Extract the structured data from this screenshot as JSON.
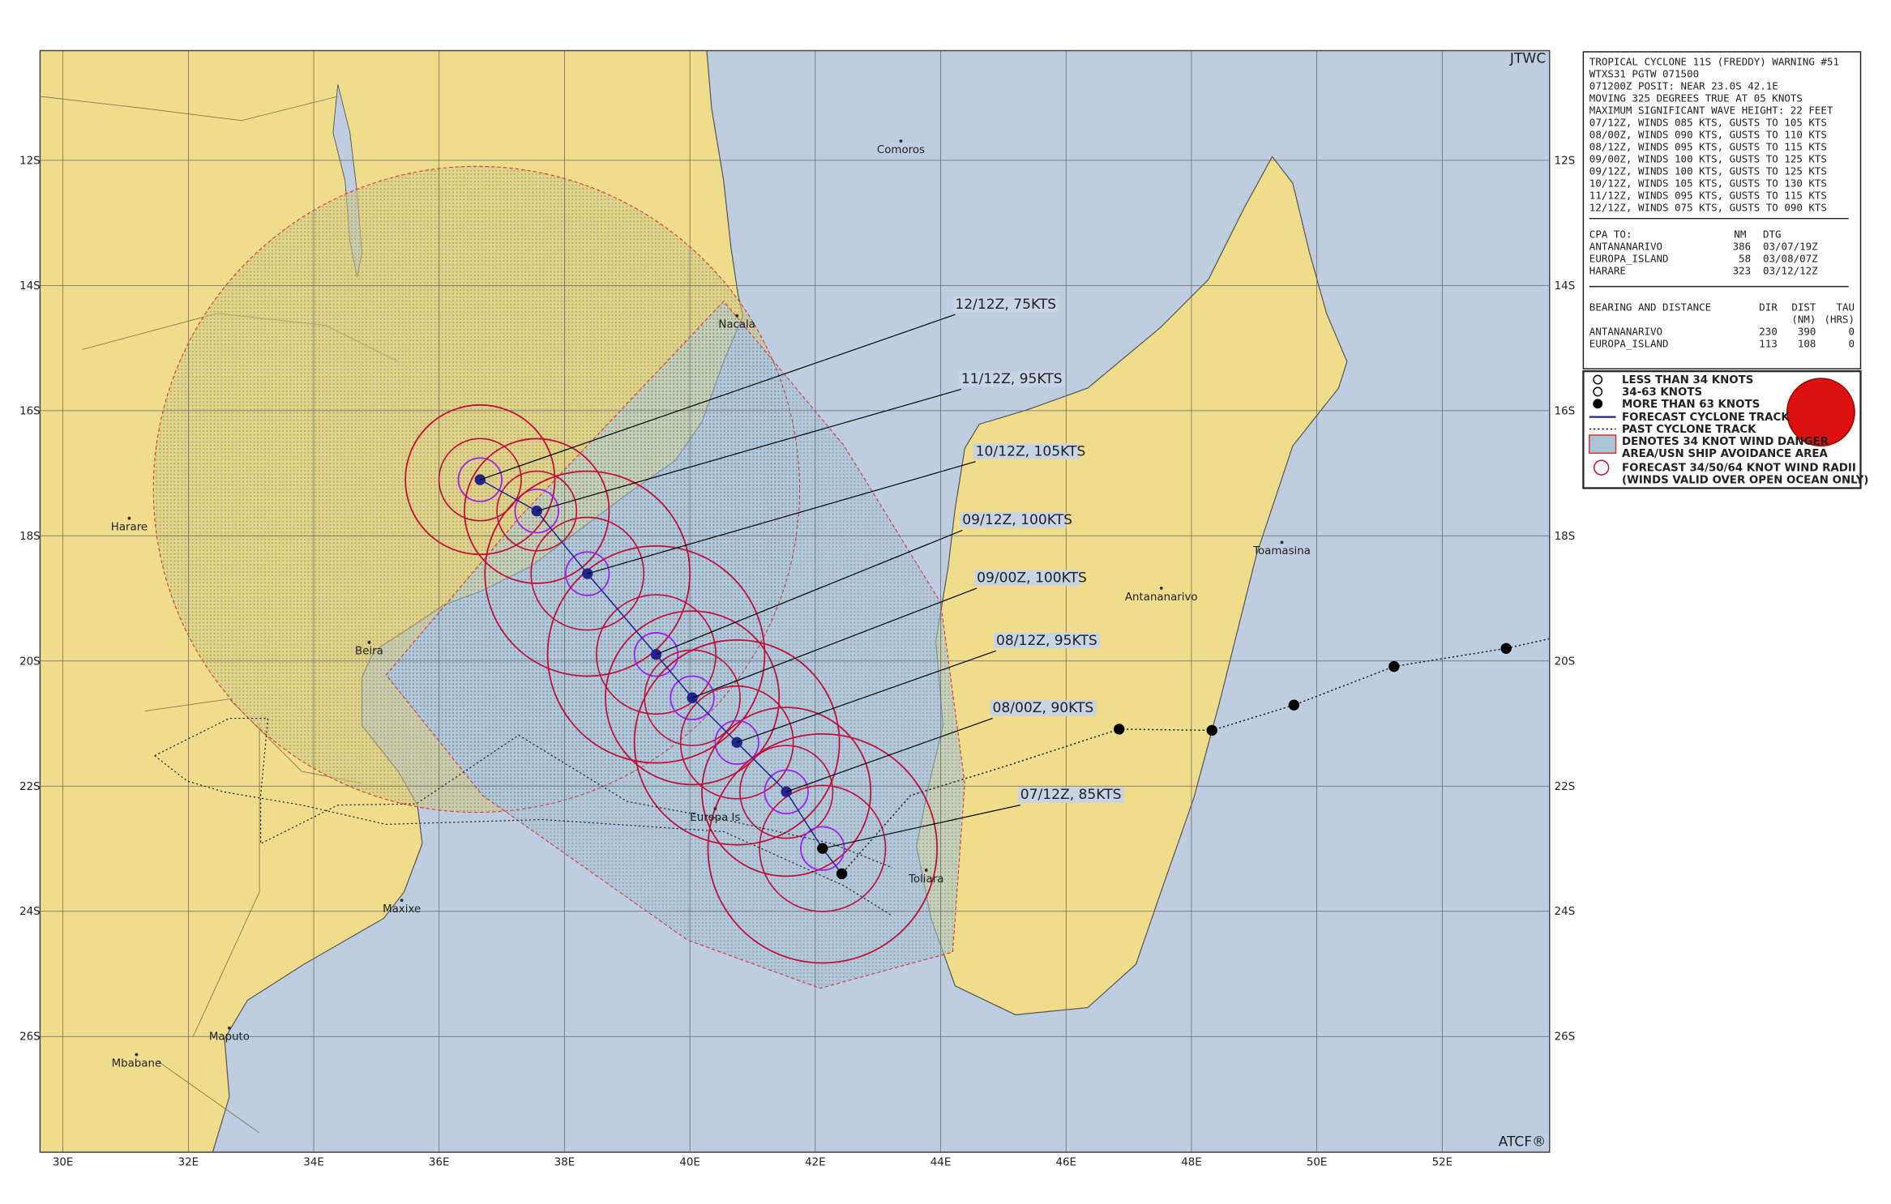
{
  "header": {
    "agency": "JTWC",
    "footer": "ATCF®"
  },
  "map": {
    "lat_labels": [
      "12S",
      "14S",
      "16S",
      "18S",
      "20S",
      "22S",
      "24S",
      "26S"
    ],
    "lon_labels": [
      "30E",
      "32E",
      "34E",
      "36E",
      "38E",
      "40E",
      "42E",
      "44E",
      "46E",
      "48E",
      "50E",
      "52E"
    ],
    "places": [
      "Comoros",
      "Nacala",
      "Harare",
      "Beira",
      "Europa Is",
      "Maxixe",
      "Maputo",
      "Mbabane",
      "Toliara",
      "Antananarivo",
      "Toamasina"
    ],
    "forecast_labels": [
      "12/12Z, 75KTS",
      "11/12Z, 95KTS",
      "10/12Z, 105KTS",
      "09/12Z, 100KTS",
      "09/00Z, 100KTS",
      "08/12Z, 95KTS",
      "08/00Z, 90KTS",
      "07/12Z, 85KTS"
    ]
  },
  "warning": {
    "lines": [
      "TROPICAL CYCLONE 11S (FREDDY) WARNING #51",
      "WTXS31 PGTW 071500",
      "071200Z POSIT: NEAR 23.0S 42.1E",
      "MOVING 325 DEGREES TRUE AT 05 KNOTS",
      "MAXIMUM SIGNIFICANT WAVE HEIGHT: 22 FEET",
      "07/12Z, WINDS 085 KTS, GUSTS TO 105 KTS",
      "08/00Z, WINDS 090 KTS, GUSTS TO 110 KTS",
      "08/12Z, WINDS 095 KTS, GUSTS TO 115 KTS",
      "09/00Z, WINDS 100 KTS, GUSTS TO 125 KTS",
      "09/12Z, WINDS 100 KTS, GUSTS TO 125 KTS",
      "10/12Z, WINDS 105 KTS, GUSTS TO 130 KTS",
      "11/12Z, WINDS 095 KTS, GUSTS TO 115 KTS",
      "12/12Z, WINDS 075 KTS, GUSTS TO 090 KTS"
    ],
    "cpa": {
      "header": [
        "CPA TO:",
        "NM",
        "DTG"
      ],
      "rows": [
        [
          "ANTANANARIVO",
          "386",
          "03/07/19Z"
        ],
        [
          "EUROPA_ISLAND",
          "58",
          "03/08/07Z"
        ],
        [
          "HARARE",
          "323",
          "03/12/12Z"
        ]
      ]
    },
    "bearing": {
      "header": [
        "BEARING AND DISTANCE",
        "DIR",
        "DIST",
        "TAU"
      ],
      "units": [
        "(NM)",
        "(HRS)"
      ],
      "rows": [
        [
          "ANTANANARIVO",
          "230",
          "390",
          "0"
        ],
        [
          "EUROPA_ISLAND",
          "113",
          "108",
          "0"
        ]
      ]
    }
  },
  "legend": {
    "items": [
      "LESS THAN 34 KNOTS",
      "34-63 KNOTS",
      "MORE THAN 63 KNOTS",
      "FORECAST CYCLONE TRACK",
      "PAST CYCLONE TRACK",
      "DENOTES 34 KNOT WIND DANGER",
      "AREA/USN SHIP AVOIDANCE AREA",
      "FORECAST 34/50/64 KNOT WIND RADII",
      "(WINDS VALID OVER OPEN OCEAN ONLY)"
    ]
  }
}
